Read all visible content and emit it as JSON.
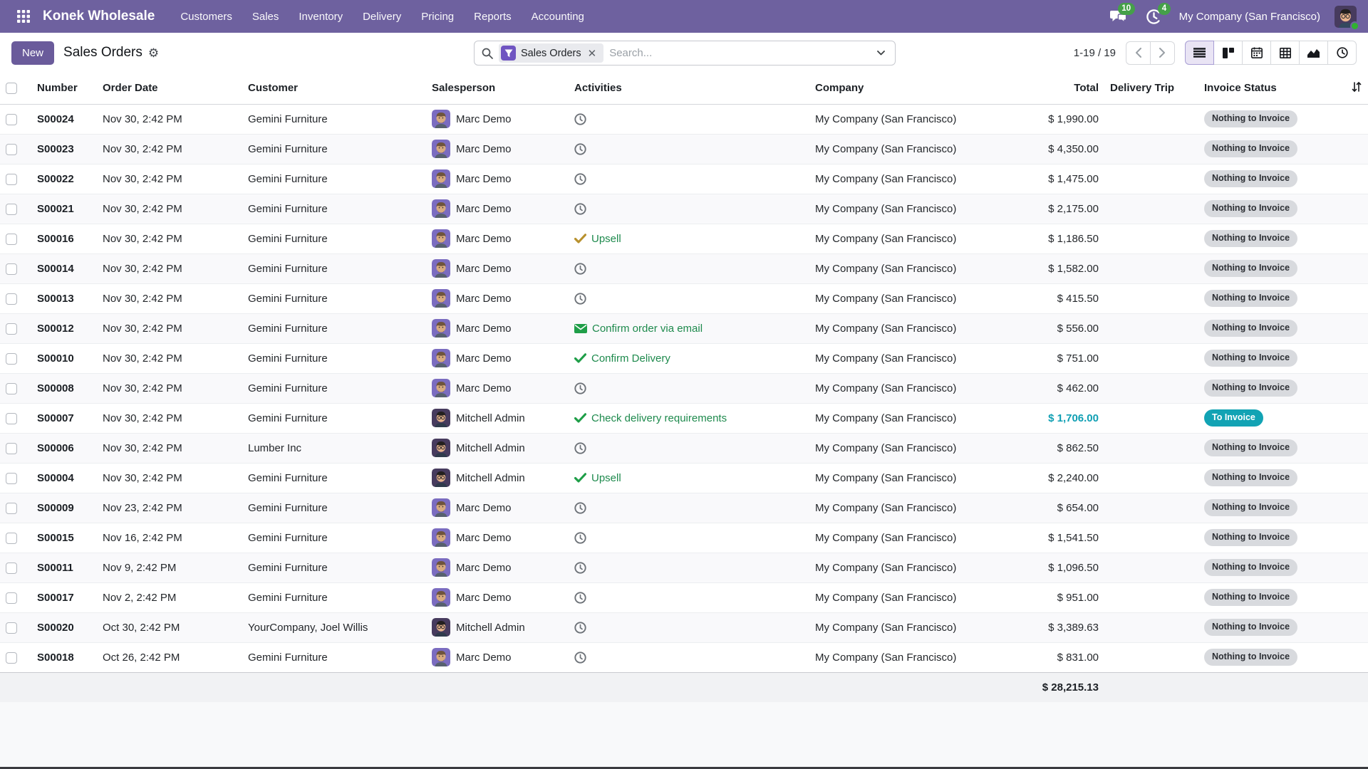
{
  "colors": {
    "navbar_bg": "#6e619f",
    "accent": "#6a5b9b",
    "filter_icon_bg": "#6f54c1",
    "info": "#0f9fb3",
    "badge_green": "#45a049"
  },
  "navbar": {
    "brand": "Konek Wholesale",
    "menus": [
      "Customers",
      "Sales",
      "Inventory",
      "Delivery",
      "Pricing",
      "Reports",
      "Accounting"
    ],
    "messages_count": "10",
    "activities_count": "4",
    "company": "My Company (San Francisco)"
  },
  "control_panel": {
    "new_button": "New",
    "title": "Sales Orders",
    "search": {
      "filter_label": "Sales Orders",
      "placeholder": "Search..."
    },
    "pager": {
      "text": "1-19 / 19"
    },
    "view_switcher": [
      "list",
      "kanban",
      "calendar",
      "pivot",
      "graph",
      "activity"
    ],
    "active_view": "list"
  },
  "table": {
    "columns": [
      {
        "key": "number",
        "label": "Number"
      },
      {
        "key": "date",
        "label": "Order Date"
      },
      {
        "key": "customer",
        "label": "Customer"
      },
      {
        "key": "salesperson",
        "label": "Salesperson"
      },
      {
        "key": "activities",
        "label": "Activities"
      },
      {
        "key": "company",
        "label": "Company"
      },
      {
        "key": "total",
        "label": "Total",
        "align": "right"
      },
      {
        "key": "trip",
        "label": "Delivery Trip"
      },
      {
        "key": "status",
        "label": "Invoice Status"
      }
    ],
    "rows": [
      {
        "number": "S00024",
        "date": "Nov 30, 2:42 PM",
        "customer": "Gemini Furniture",
        "salesperson": "Marc Demo",
        "avatar": "marc-demo",
        "activity": {
          "icon": "clock",
          "icon_color": "#6e7379"
        },
        "company": "My Company (San Francisco)",
        "total": "$ 1,990.00",
        "total_variant": "normal",
        "status": "Nothing to Invoice",
        "status_variant": "muted"
      },
      {
        "number": "S00023",
        "date": "Nov 30, 2:42 PM",
        "customer": "Gemini Furniture",
        "salesperson": "Marc Demo",
        "avatar": "marc-demo",
        "activity": {
          "icon": "clock",
          "icon_color": "#6e7379"
        },
        "company": "My Company (San Francisco)",
        "total": "$ 4,350.00",
        "total_variant": "normal",
        "status": "Nothing to Invoice",
        "status_variant": "muted"
      },
      {
        "number": "S00022",
        "date": "Nov 30, 2:42 PM",
        "customer": "Gemini Furniture",
        "salesperson": "Marc Demo",
        "avatar": "marc-demo",
        "activity": {
          "icon": "clock",
          "icon_color": "#6e7379"
        },
        "company": "My Company (San Francisco)",
        "total": "$ 1,475.00",
        "total_variant": "normal",
        "status": "Nothing to Invoice",
        "status_variant": "muted"
      },
      {
        "number": "S00021",
        "date": "Nov 30, 2:42 PM",
        "customer": "Gemini Furniture",
        "salesperson": "Marc Demo",
        "avatar": "marc-demo",
        "activity": {
          "icon": "clock",
          "icon_color": "#6e7379"
        },
        "company": "My Company (San Francisco)",
        "total": "$ 2,175.00",
        "total_variant": "normal",
        "status": "Nothing to Invoice",
        "status_variant": "muted"
      },
      {
        "number": "S00016",
        "date": "Nov 30, 2:42 PM",
        "customer": "Gemini Furniture",
        "salesperson": "Marc Demo",
        "avatar": "marc-demo",
        "activity": {
          "icon": "check",
          "icon_color": "#b8912e",
          "label": "Upsell",
          "label_color": "#1e8a4d"
        },
        "company": "My Company (San Francisco)",
        "total": "$ 1,186.50",
        "total_variant": "normal",
        "status": "Nothing to Invoice",
        "status_variant": "muted"
      },
      {
        "number": "S00014",
        "date": "Nov 30, 2:42 PM",
        "customer": "Gemini Furniture",
        "salesperson": "Marc Demo",
        "avatar": "marc-demo",
        "activity": {
          "icon": "clock",
          "icon_color": "#6e7379"
        },
        "company": "My Company (San Francisco)",
        "total": "$ 1,582.00",
        "total_variant": "normal",
        "status": "Nothing to Invoice",
        "status_variant": "muted"
      },
      {
        "number": "S00013",
        "date": "Nov 30, 2:42 PM",
        "customer": "Gemini Furniture",
        "salesperson": "Marc Demo",
        "avatar": "marc-demo",
        "activity": {
          "icon": "clock",
          "icon_color": "#6e7379"
        },
        "company": "My Company (San Francisco)",
        "total": "$ 415.50",
        "total_variant": "normal",
        "status": "Nothing to Invoice",
        "status_variant": "muted"
      },
      {
        "number": "S00012",
        "date": "Nov 30, 2:42 PM",
        "customer": "Gemini Furniture",
        "salesperson": "Marc Demo",
        "avatar": "marc-demo",
        "activity": {
          "icon": "envelope",
          "icon_color": "#1f9e48",
          "label": "Confirm order via email",
          "label_color": "#1e8a4d"
        },
        "company": "My Company (San Francisco)",
        "total": "$ 556.00",
        "total_variant": "normal",
        "status": "Nothing to Invoice",
        "status_variant": "muted"
      },
      {
        "number": "S00010",
        "date": "Nov 30, 2:42 PM",
        "customer": "Gemini Furniture",
        "salesperson": "Marc Demo",
        "avatar": "marc-demo",
        "activity": {
          "icon": "check",
          "icon_color": "#1f9e48",
          "label": "Confirm Delivery",
          "label_color": "#1e8a4d"
        },
        "company": "My Company (San Francisco)",
        "total": "$ 751.00",
        "total_variant": "normal",
        "status": "Nothing to Invoice",
        "status_variant": "muted"
      },
      {
        "number": "S00008",
        "date": "Nov 30, 2:42 PM",
        "customer": "Gemini Furniture",
        "salesperson": "Marc Demo",
        "avatar": "marc-demo",
        "activity": {
          "icon": "clock",
          "icon_color": "#6e7379"
        },
        "company": "My Company (San Francisco)",
        "total": "$ 462.00",
        "total_variant": "normal",
        "status": "Nothing to Invoice",
        "status_variant": "muted"
      },
      {
        "number": "S00007",
        "date": "Nov 30, 2:42 PM",
        "customer": "Gemini Furniture",
        "salesperson": "Mitchell Admin",
        "avatar": "mitchell-admin",
        "activity": {
          "icon": "check",
          "icon_color": "#1f9e48",
          "label": "Check delivery requirements",
          "label_color": "#1e8a4d"
        },
        "company": "My Company (San Francisco)",
        "total": "$ 1,706.00",
        "total_variant": "info",
        "status": "To Invoice",
        "status_variant": "info"
      },
      {
        "number": "S00006",
        "date": "Nov 30, 2:42 PM",
        "customer": "Lumber Inc",
        "salesperson": "Mitchell Admin",
        "avatar": "mitchell-admin",
        "activity": {
          "icon": "clock",
          "icon_color": "#6e7379"
        },
        "company": "My Company (San Francisco)",
        "total": "$ 862.50",
        "total_variant": "normal",
        "status": "Nothing to Invoice",
        "status_variant": "muted"
      },
      {
        "number": "S00004",
        "date": "Nov 30, 2:42 PM",
        "customer": "Gemini Furniture",
        "salesperson": "Mitchell Admin",
        "avatar": "mitchell-admin",
        "activity": {
          "icon": "check",
          "icon_color": "#1f9e48",
          "label": "Upsell",
          "label_color": "#1e8a4d"
        },
        "company": "My Company (San Francisco)",
        "total": "$ 2,240.00",
        "total_variant": "normal",
        "status": "Nothing to Invoice",
        "status_variant": "muted"
      },
      {
        "number": "S00009",
        "date": "Nov 23, 2:42 PM",
        "customer": "Gemini Furniture",
        "salesperson": "Marc Demo",
        "avatar": "marc-demo",
        "activity": {
          "icon": "clock",
          "icon_color": "#6e7379"
        },
        "company": "My Company (San Francisco)",
        "total": "$ 654.00",
        "total_variant": "normal",
        "status": "Nothing to Invoice",
        "status_variant": "muted"
      },
      {
        "number": "S00015",
        "date": "Nov 16, 2:42 PM",
        "customer": "Gemini Furniture",
        "salesperson": "Marc Demo",
        "avatar": "marc-demo",
        "activity": {
          "icon": "clock",
          "icon_color": "#6e7379"
        },
        "company": "My Company (San Francisco)",
        "total": "$ 1,541.50",
        "total_variant": "normal",
        "status": "Nothing to Invoice",
        "status_variant": "muted"
      },
      {
        "number": "S00011",
        "date": "Nov 9, 2:42 PM",
        "customer": "Gemini Furniture",
        "salesperson": "Marc Demo",
        "avatar": "marc-demo",
        "activity": {
          "icon": "clock",
          "icon_color": "#6e7379"
        },
        "company": "My Company (San Francisco)",
        "total": "$ 1,096.50",
        "total_variant": "normal",
        "status": "Nothing to Invoice",
        "status_variant": "muted"
      },
      {
        "number": "S00017",
        "date": "Nov 2, 2:42 PM",
        "customer": "Gemini Furniture",
        "salesperson": "Marc Demo",
        "avatar": "marc-demo",
        "activity": {
          "icon": "clock",
          "icon_color": "#6e7379"
        },
        "company": "My Company (San Francisco)",
        "total": "$ 951.00",
        "total_variant": "normal",
        "status": "Nothing to Invoice",
        "status_variant": "muted"
      },
      {
        "number": "S00020",
        "date": "Oct 30, 2:42 PM",
        "customer": "YourCompany, Joel Willis",
        "salesperson": "Mitchell Admin",
        "avatar": "mitchell-admin",
        "activity": {
          "icon": "clock",
          "icon_color": "#6e7379"
        },
        "company": "My Company (San Francisco)",
        "total": "$ 3,389.63",
        "total_variant": "normal",
        "status": "Nothing to Invoice",
        "status_variant": "muted"
      },
      {
        "number": "S00018",
        "date": "Oct 26, 2:42 PM",
        "customer": "Gemini Furniture",
        "salesperson": "Marc Demo",
        "avatar": "marc-demo",
        "activity": {
          "icon": "clock",
          "icon_color": "#6e7379"
        },
        "company": "My Company (San Francisco)",
        "total": "$ 831.00",
        "total_variant": "normal",
        "status": "Nothing to Invoice",
        "status_variant": "muted"
      }
    ],
    "footer_total": "$ 28,215.13"
  }
}
